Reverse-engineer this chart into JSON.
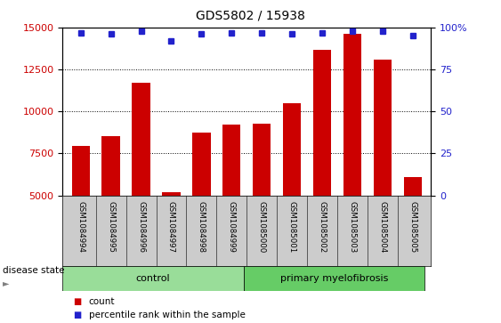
{
  "title": "GDS5802 / 15938",
  "samples": [
    "GSM1084994",
    "GSM1084995",
    "GSM1084996",
    "GSM1084997",
    "GSM1084998",
    "GSM1084999",
    "GSM1085000",
    "GSM1085001",
    "GSM1085002",
    "GSM1085003",
    "GSM1085004",
    "GSM1085005"
  ],
  "counts": [
    7950,
    8550,
    11700,
    5200,
    8750,
    9200,
    9250,
    10500,
    13650,
    14600,
    13100,
    6100
  ],
  "percentiles": [
    97,
    96,
    98,
    92,
    96,
    97,
    97,
    96,
    97,
    98,
    98,
    95
  ],
  "n_control": 6,
  "bar_color": "#cc0000",
  "dot_color": "#2222cc",
  "ylim_left": [
    5000,
    15000
  ],
  "ylim_right": [
    0,
    100
  ],
  "yticks_left": [
    5000,
    7500,
    10000,
    12500,
    15000
  ],
  "yticks_right": [
    0,
    25,
    50,
    75,
    100
  ],
  "control_color": "#99dd99",
  "myelofibrosis_color": "#66cc66",
  "tick_bg_color": "#cccccc",
  "legend_count_label": "count",
  "legend_percentile_label": "percentile rank within the sample",
  "disease_state_label": "disease state"
}
